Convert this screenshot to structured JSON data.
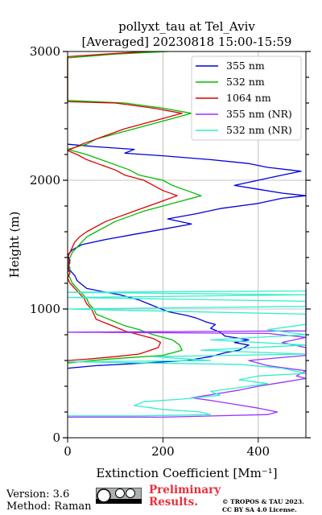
{
  "chart_data": {
    "type": "line",
    "title_line1": "pollyxt_tau at Tel_Aviv",
    "title_line2": "[Averaged] 20230818 15:00-15:59",
    "xlabel": "Extinction Coefficient [Mm⁻¹]",
    "ylabel": "Height (m)",
    "xlim": [
      0,
      500
    ],
    "ylim": [
      0,
      3000
    ],
    "xticks": [
      0,
      200,
      400
    ],
    "yticks": [
      0,
      1000,
      2000,
      3000
    ],
    "grid": true,
    "legend_position": "top-right",
    "series": [
      {
        "name": "355 nm",
        "color": "#0000dd",
        "points": [
          [
            0,
            540
          ],
          [
            60,
            560
          ],
          [
            160,
            580
          ],
          [
            250,
            600
          ],
          [
            300,
            630
          ],
          [
            330,
            660
          ],
          [
            360,
            680
          ],
          [
            370,
            700
          ],
          [
            380,
            720
          ],
          [
            350,
            740
          ],
          [
            380,
            760
          ],
          [
            330,
            790
          ],
          [
            320,
            820
          ],
          [
            300,
            850
          ],
          [
            310,
            880
          ],
          [
            290,
            900
          ],
          [
            270,
            930
          ],
          [
            250,
            950
          ],
          [
            210,
            980
          ],
          [
            190,
            1010
          ],
          [
            170,
            1040
          ],
          [
            150,
            1070
          ],
          [
            130,
            1090
          ],
          [
            110,
            1110
          ],
          [
            80,
            1130
          ],
          [
            40,
            1160
          ],
          [
            30,
            1190
          ],
          [
            20,
            1220
          ],
          [
            15,
            1260
          ],
          [
            5,
            1300
          ],
          [
            0,
            1340
          ],
          [
            5,
            1380
          ],
          [
            0,
            1420
          ],
          [
            10,
            1460
          ],
          [
            30,
            1500
          ],
          [
            80,
            1540
          ],
          [
            140,
            1580
          ],
          [
            200,
            1620
          ],
          [
            260,
            1660
          ],
          [
            210,
            1700
          ],
          [
            270,
            1740
          ],
          [
            320,
            1780
          ],
          [
            400,
            1820
          ],
          [
            450,
            1860
          ],
          [
            520,
            1880
          ],
          [
            450,
            1900
          ],
          [
            400,
            1930
          ],
          [
            350,
            1960
          ],
          [
            400,
            2000
          ],
          [
            450,
            2040
          ],
          [
            490,
            2070
          ],
          [
            420,
            2100
          ],
          [
            380,
            2130
          ],
          [
            300,
            2160
          ],
          [
            200,
            2190
          ],
          [
            120,
            2210
          ],
          [
            140,
            2240
          ],
          [
            60,
            2260
          ],
          [
            0,
            2280
          ]
        ]
      },
      {
        "name": "532 nm",
        "color": "#00bb00",
        "points": [
          [
            0,
            580
          ],
          [
            50,
            600
          ],
          [
            120,
            620
          ],
          [
            200,
            640
          ],
          [
            240,
            680
          ],
          [
            235,
            720
          ],
          [
            220,
            760
          ],
          [
            180,
            800
          ],
          [
            150,
            840
          ],
          [
            120,
            870
          ],
          [
            100,
            900
          ],
          [
            80,
            930
          ],
          [
            60,
            960
          ],
          [
            55,
            1000
          ],
          [
            45,
            1040
          ],
          [
            40,
            1080
          ],
          [
            30,
            1120
          ],
          [
            20,
            1160
          ],
          [
            10,
            1200
          ],
          [
            5,
            1240
          ],
          [
            0,
            1280
          ],
          [
            5,
            1320
          ],
          [
            0,
            1360
          ],
          [
            5,
            1400
          ],
          [
            10,
            1440
          ],
          [
            20,
            1480
          ],
          [
            30,
            1520
          ],
          [
            40,
            1560
          ],
          [
            60,
            1600
          ],
          [
            80,
            1640
          ],
          [
            100,
            1680
          ],
          [
            130,
            1720
          ],
          [
            160,
            1760
          ],
          [
            200,
            1800
          ],
          [
            240,
            1840
          ],
          [
            280,
            1880
          ],
          [
            250,
            1920
          ],
          [
            220,
            1960
          ],
          [
            200,
            2000
          ],
          [
            150,
            2040
          ],
          [
            130,
            2080
          ],
          [
            100,
            2120
          ],
          [
            70,
            2160
          ],
          [
            40,
            2200
          ],
          [
            0,
            2240
          ],
          [
            40,
            2280
          ],
          [
            60,
            2320
          ],
          [
            100,
            2360
          ],
          [
            140,
            2400
          ],
          [
            180,
            2440
          ],
          [
            220,
            2480
          ],
          [
            260,
            2520
          ],
          [
            200,
            2560
          ],
          [
            120,
            2600
          ],
          [
            0,
            2620
          ],
          [
            0,
            2950
          ],
          [
            100,
            2980
          ],
          [
            210,
            3000
          ]
        ]
      },
      {
        "name": "1064 nm",
        "color": "#dd0000",
        "points": [
          [
            0,
            600
          ],
          [
            40,
            610
          ],
          [
            100,
            630
          ],
          [
            150,
            650
          ],
          [
            190,
            700
          ],
          [
            195,
            740
          ],
          [
            180,
            770
          ],
          [
            150,
            800
          ],
          [
            120,
            830
          ],
          [
            100,
            860
          ],
          [
            80,
            890
          ],
          [
            60,
            920
          ],
          [
            55,
            960
          ],
          [
            50,
            1000
          ],
          [
            40,
            1040
          ],
          [
            35,
            1080
          ],
          [
            25,
            1120
          ],
          [
            15,
            1160
          ],
          [
            5,
            1200
          ],
          [
            0,
            1240
          ],
          [
            5,
            1280
          ],
          [
            0,
            1320
          ],
          [
            5,
            1360
          ],
          [
            0,
            1400
          ],
          [
            5,
            1440
          ],
          [
            10,
            1480
          ],
          [
            15,
            1520
          ],
          [
            25,
            1560
          ],
          [
            40,
            1600
          ],
          [
            60,
            1640
          ],
          [
            80,
            1680
          ],
          [
            110,
            1720
          ],
          [
            140,
            1760
          ],
          [
            170,
            1800
          ],
          [
            200,
            1840
          ],
          [
            230,
            1880
          ],
          [
            200,
            1920
          ],
          [
            180,
            1960
          ],
          [
            160,
            2000
          ],
          [
            120,
            2040
          ],
          [
            100,
            2080
          ],
          [
            70,
            2120
          ],
          [
            40,
            2160
          ],
          [
            20,
            2200
          ],
          [
            0,
            2230
          ],
          [
            30,
            2280
          ],
          [
            60,
            2320
          ],
          [
            90,
            2360
          ],
          [
            120,
            2400
          ],
          [
            160,
            2440
          ],
          [
            200,
            2480
          ],
          [
            240,
            2520
          ],
          [
            180,
            2560
          ],
          [
            100,
            2600
          ],
          [
            0,
            2610
          ],
          [
            0,
            2960
          ],
          [
            80,
            2980
          ],
          [
            170,
            3000
          ]
        ]
      },
      {
        "name": "355 nm (NR)",
        "color": "#9933ff",
        "points": [
          [
            0,
            160
          ],
          [
            200,
            160
          ],
          [
            420,
            180
          ],
          [
            440,
            200
          ],
          [
            400,
            230
          ],
          [
            350,
            260
          ],
          [
            300,
            290
          ],
          [
            260,
            310
          ],
          [
            310,
            340
          ],
          [
            360,
            370
          ],
          [
            400,
            400
          ],
          [
            450,
            430
          ],
          [
            500,
            460
          ],
          [
            480,
            480
          ],
          [
            500,
            520
          ],
          [
            420,
            560
          ],
          [
            380,
            600
          ],
          [
            500,
            640
          ],
          [
            500,
            700
          ],
          [
            450,
            740
          ],
          [
            500,
            780
          ],
          [
            420,
            810
          ],
          [
            0,
            820
          ],
          [
            500,
            830
          ],
          [
            500,
            880
          ],
          [
            500,
            940
          ],
          [
            500,
            990
          ],
          [
            500,
            1040
          ],
          [
            500,
            1100
          ],
          [
            500,
            1150
          ]
        ]
      },
      {
        "name": "532 nm (NR)",
        "color": "#33eecc",
        "points": [
          [
            0,
            170
          ],
          [
            150,
            170
          ],
          [
            300,
            180
          ],
          [
            280,
            200
          ],
          [
            200,
            220
          ],
          [
            140,
            250
          ],
          [
            160,
            280
          ],
          [
            240,
            300
          ],
          [
            320,
            330
          ],
          [
            300,
            360
          ],
          [
            360,
            390
          ],
          [
            420,
            420
          ],
          [
            360,
            450
          ],
          [
            400,
            480
          ],
          [
            500,
            500
          ],
          [
            450,
            540
          ],
          [
            360,
            570
          ],
          [
            0,
            590
          ],
          [
            300,
            600
          ],
          [
            180,
            630
          ],
          [
            500,
            650
          ],
          [
            280,
            680
          ],
          [
            500,
            720
          ],
          [
            300,
            760
          ],
          [
            500,
            800
          ],
          [
            420,
            840
          ],
          [
            500,
            880
          ],
          [
            500,
            920
          ],
          [
            500,
            960
          ],
          [
            0,
            1000
          ],
          [
            500,
            1020
          ],
          [
            500,
            1060
          ],
          [
            0,
            1090
          ],
          [
            500,
            1110
          ],
          [
            0,
            1130
          ],
          [
            500,
            1140
          ],
          [
            500,
            1160
          ]
        ]
      }
    ]
  },
  "footer": {
    "version": "Version: 3.6",
    "method": "Method: Raman",
    "prelim_line1": "Preliminary",
    "prelim_line2": "Results.",
    "copyright_line1": "© TROPOS & TAU 2023.",
    "copyright_line2": "CC BY SA 4.0 License."
  }
}
